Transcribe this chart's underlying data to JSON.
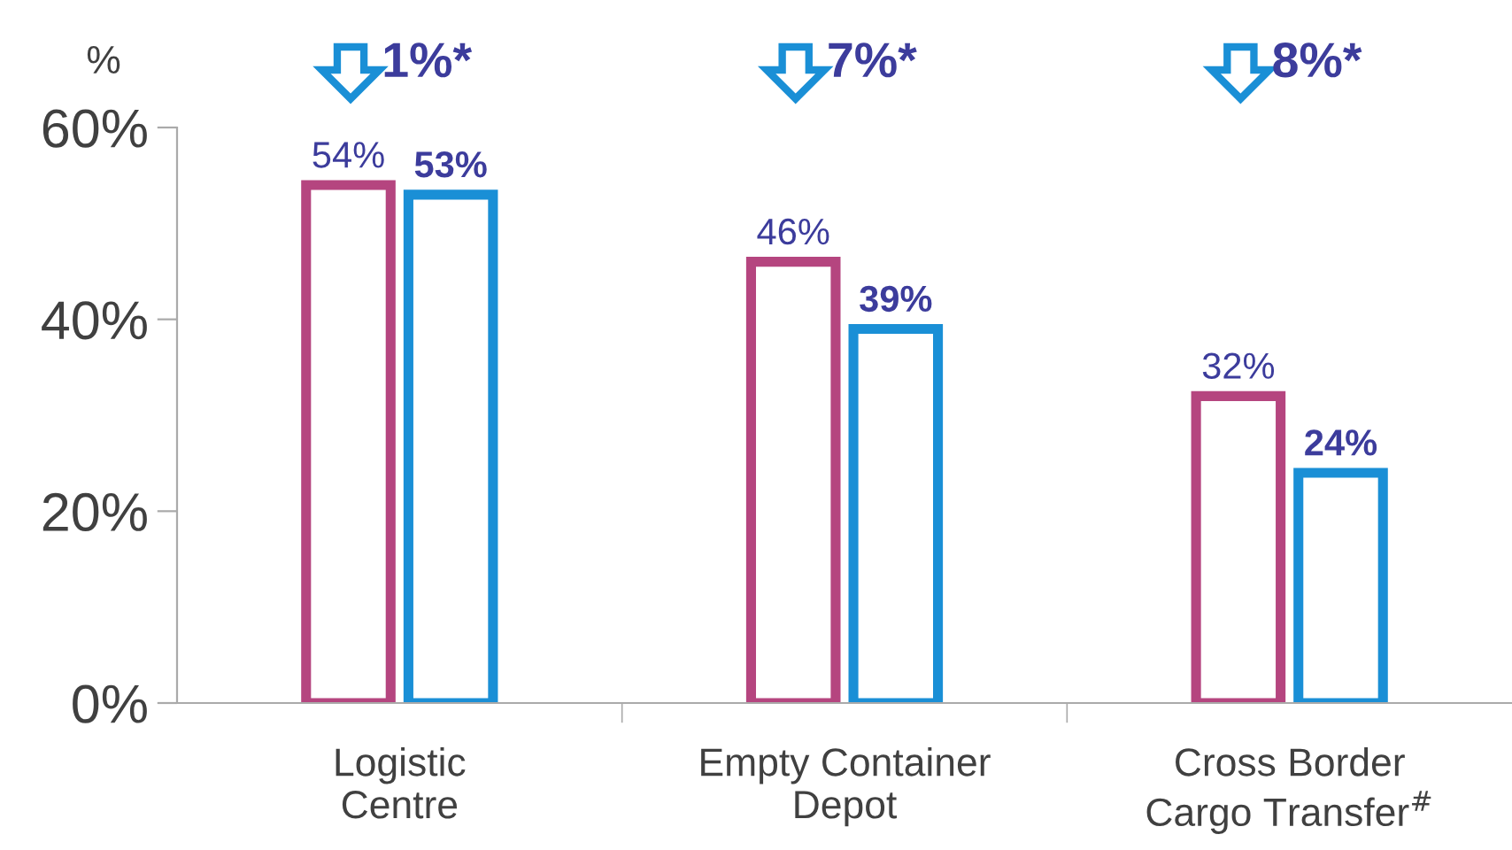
{
  "chart_data": {
    "type": "bar",
    "ylabel": "%",
    "categories": [
      "Logistic\nCentre",
      "Empty Container\nDepot",
      "Cross Border\nCargo Transfer$^{#}$"
    ],
    "series": [
      {
        "color": "#b5457f",
        "values": [
          54,
          46,
          32
        ],
        "value_labels": [
          "54%",
          "46%",
          "32%"
        ]
      },
      {
        "color": "#1a8fd6",
        "values": [
          53,
          39,
          24
        ],
        "value_labels": [
          "53%",
          "39%",
          "24%"
        ]
      }
    ],
    "ylim": [
      0,
      60
    ],
    "yticks": [
      {
        "value": 0,
        "label": "0%"
      },
      {
        "value": 20,
        "label": "20%"
      },
      {
        "value": 40,
        "label": "40%"
      },
      {
        "value": 60,
        "label": "60%"
      }
    ],
    "grid": false,
    "annotations": [
      "1%*",
      "7%*",
      "8%*"
    ]
  }
}
